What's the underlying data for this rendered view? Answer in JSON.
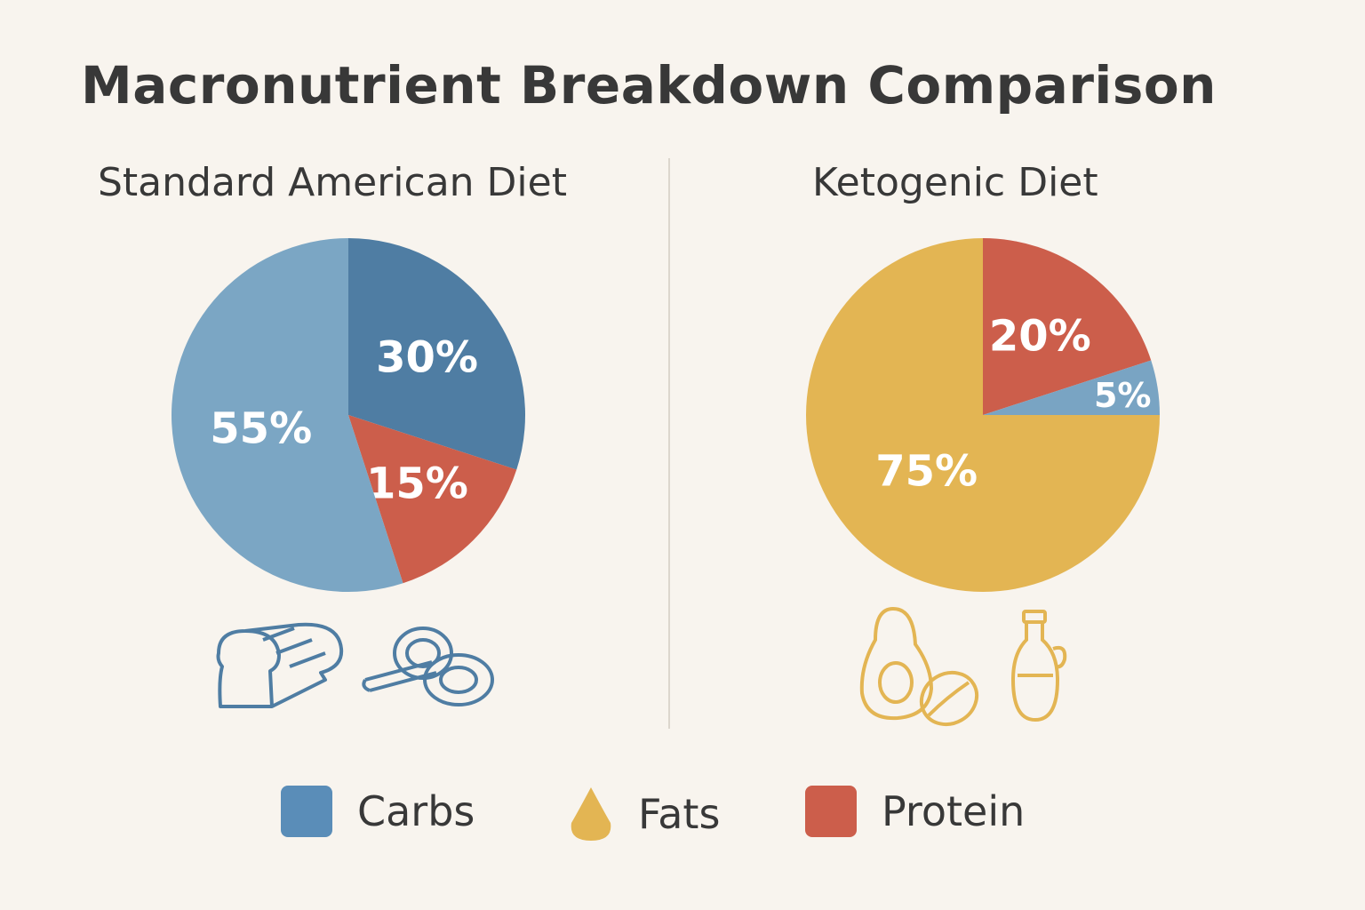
{
  "title": "Macronutrient Breakdown Comparison",
  "chart_data": [
    {
      "type": "pie",
      "title": "Standard American Diet",
      "slices": [
        {
          "label": "30%",
          "value": 30,
          "color": "#4f7da3"
        },
        {
          "label": "15%",
          "value": 15,
          "color": "#cc5e4b"
        },
        {
          "label": "55%",
          "value": 55,
          "color": "#7ba6c4"
        }
      ],
      "icons": [
        "bread-icon",
        "pasta-icon"
      ]
    },
    {
      "type": "pie",
      "title": "Ketogenic Diet",
      "slices": [
        {
          "label": "20%",
          "value": 20,
          "color": "#cc5e4b"
        },
        {
          "label": "5%",
          "value": 5,
          "color": "#79a4c3"
        },
        {
          "label": "75%",
          "value": 75,
          "color": "#e3b553"
        }
      ],
      "icons": [
        "avocado-icon",
        "oil-bottle-icon"
      ]
    }
  ],
  "legend": [
    {
      "label": "Carbs",
      "color": "#5a8db8",
      "shape": "square"
    },
    {
      "label": "Fats",
      "color": "#e3b553",
      "shape": "drop"
    },
    {
      "label": "Protein",
      "color": "#cc5e4b",
      "shape": "square"
    }
  ]
}
